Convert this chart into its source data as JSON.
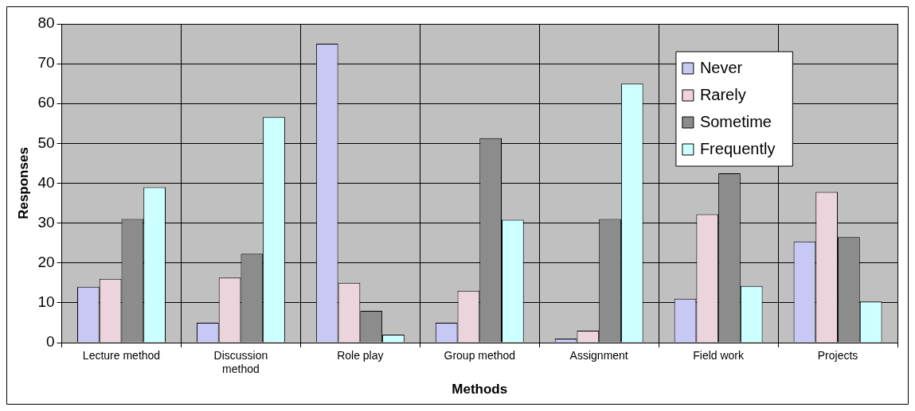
{
  "chart_data": {
    "type": "bar",
    "xlabel": "Methods",
    "ylabel": "Responses",
    "categories": [
      "Lecture method",
      "Discussion method",
      "Role play",
      "Group method",
      "Assignment",
      "Field work",
      "Projects"
    ],
    "series": [
      {
        "name": "Never",
        "color": "#c8c8f4",
        "values": [
          14,
          5,
          75,
          5,
          1,
          11,
          25.4
        ]
      },
      {
        "name": "Rarely",
        "color": "#ecd4dc",
        "values": [
          16,
          16.3,
          15,
          13,
          3,
          32.2,
          37.8
        ]
      },
      {
        "name": "Sometime",
        "color": "#8c8c8c",
        "values": [
          31,
          22.3,
          8,
          51.3,
          31,
          42.5,
          26.5
        ]
      },
      {
        "name": "Frequently",
        "color": "#ccffff",
        "values": [
          39,
          56.6,
          2,
          30.8,
          65,
          14.2,
          10.3
        ]
      }
    ],
    "ylim": [
      0,
      80
    ],
    "yticks": [
      0,
      10,
      20,
      30,
      40,
      50,
      60,
      70,
      80
    ],
    "grid": true,
    "legend": "top right"
  }
}
